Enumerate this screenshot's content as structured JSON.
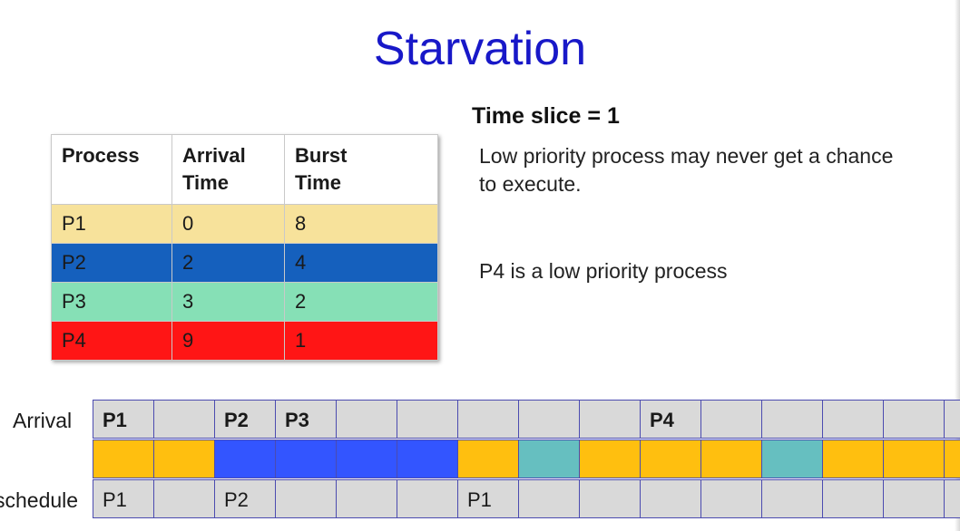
{
  "title": "Starvation",
  "time_slice": "Time slice = 1",
  "notes": [
    "Low priority process may never get a chance to execute.",
    "P4 is a low priority process"
  ],
  "table": {
    "headers": [
      "Process",
      "Arrival\nTime",
      "Burst\nTime"
    ],
    "rows": [
      {
        "process": "P1",
        "arrival": "0",
        "burst": "8",
        "color": "#f7e29b"
      },
      {
        "process": "P2",
        "arrival": "2",
        "burst": "4",
        "color": "#1560bd"
      },
      {
        "process": "P3",
        "arrival": "3",
        "burst": "2",
        "color": "#86e0b6"
      },
      {
        "process": "P4",
        "arrival": "9",
        "burst": "1",
        "color": "#ff1515"
      }
    ]
  },
  "timeline": {
    "arrival_label": "Arrival",
    "schedule_label": "schedule",
    "arrivals": [
      "P1",
      "",
      "P2",
      "P3",
      "",
      "",
      "",
      "",
      "",
      "P4",
      "",
      "",
      "",
      "",
      ""
    ],
    "gantt_colors": [
      "#ffbf0f",
      "#ffbf0f",
      "#3355ff",
      "#3355ff",
      "#3355ff",
      "#3355ff",
      "#ffbf0f",
      "#66bfc0",
      "#ffbf0f",
      "#ffbf0f",
      "#ffbf0f",
      "#66bfc0",
      "#ffbf0f",
      "#ffbf0f",
      "#ffbf0f"
    ],
    "schedule": [
      "P1",
      "",
      "P2",
      "",
      "",
      "",
      "P1",
      "",
      "",
      "",
      "",
      "",
      "",
      "",
      ""
    ]
  }
}
